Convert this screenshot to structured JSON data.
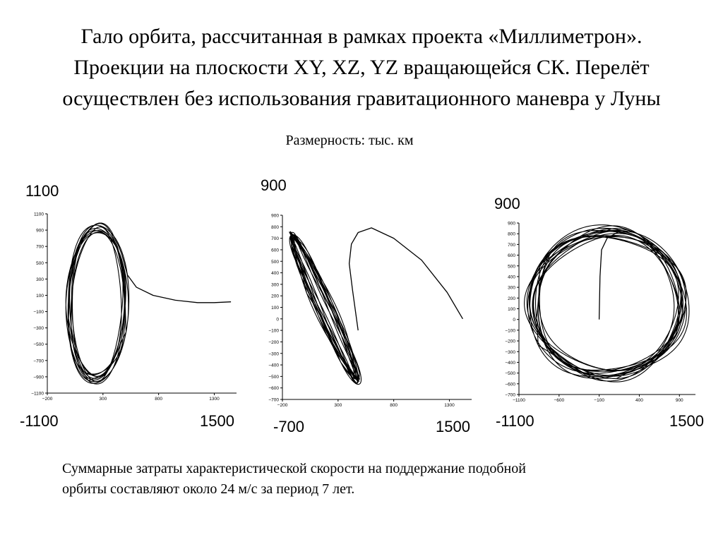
{
  "title_lines": [
    "Гало орбита, рассчитанная в рамках проекта «Миллиметрон».",
    "Проекции на плоскости XY, XZ, YZ вращающейся СК. Перелёт",
    "осуществлен без использования гравитационного маневра у Луны"
  ],
  "subtitle": "Размерность: тыс. км",
  "footer_lines": [
    "Суммарные затраты характеристической скорости на поддержание подобной",
    "орбиты составляют около 24 м/с за период 7 лет."
  ],
  "panels": [
    {
      "big_top": "1100",
      "big_bottom_left": "-1100",
      "big_bottom_right": "1500",
      "xticks": [
        "−200",
        "300",
        "800",
        "1300"
      ],
      "yticks": [
        "1100",
        "900",
        "700",
        "500",
        "300",
        "100",
        "−100",
        "−300",
        "−500",
        "−700",
        "−900",
        "−1100"
      ]
    },
    {
      "big_top": "900",
      "big_bottom_left": "-700",
      "big_bottom_right": "1500",
      "xticks": [
        "−200",
        "300",
        "800",
        "1300"
      ],
      "yticks": [
        "900",
        "800",
        "700",
        "600",
        "500",
        "400",
        "300",
        "200",
        "100",
        "0",
        "−100",
        "−200",
        "−300",
        "−400",
        "−500",
        "−600",
        "−700"
      ]
    },
    {
      "big_top": "900",
      "big_bottom_left": "-1100",
      "big_bottom_right": "1500",
      "xticks": [
        "−1100",
        "−600",
        "−100",
        "400",
        "900"
      ],
      "yticks": [
        "900",
        "800",
        "700",
        "600",
        "500",
        "400",
        "300",
        "200",
        "100",
        "0",
        "−100",
        "−200",
        "−300",
        "−400",
        "−500",
        "−600",
        "−700"
      ]
    }
  ],
  "chart_data": [
    {
      "type": "line",
      "xlim": [
        -200,
        1500
      ],
      "ylim": [
        -1100,
        1100
      ],
      "series": [
        {
          "values": [
            [
              420,
              780
            ],
            [
              470,
              600
            ],
            [
              520,
              350
            ],
            [
              600,
              200
            ],
            [
              750,
              100
            ],
            [
              950,
              40
            ],
            [
              1150,
              10
            ],
            [
              1300,
              10
            ],
            [
              1450,
              20
            ]
          ]
        },
        {
          "values": [
            [
              520,
              0
            ],
            [
              480,
              600
            ],
            [
              300,
              1000
            ],
            [
              100,
              700
            ],
            [
              -30,
              0
            ],
            [
              60,
              -800
            ],
            [
              300,
              -1000
            ],
            [
              480,
              -600
            ],
            [
              520,
              0
            ]
          ]
        }
      ]
    },
    {
      "type": "line",
      "xlim": [
        -200,
        1500
      ],
      "ylim": [
        -700,
        900
      ],
      "series": [
        {
          "values": [
            [
              1420,
              0
            ],
            [
              1280,
              230
            ],
            [
              1050,
              510
            ],
            [
              800,
              700
            ],
            [
              600,
              790
            ],
            [
              480,
              750
            ],
            [
              420,
              650
            ],
            [
              400,
              480
            ],
            [
              430,
              250
            ],
            [
              480,
              -100
            ]
          ]
        },
        {
          "values": [
            [
              -180,
              720
            ],
            [
              -100,
              800
            ],
            [
              100,
              500
            ],
            [
              350,
              0
            ],
            [
              500,
              -450
            ],
            [
              540,
              -610
            ],
            [
              480,
              -600
            ],
            [
              300,
              -300
            ],
            [
              60,
              200
            ],
            [
              -130,
              640
            ]
          ]
        }
      ]
    },
    {
      "type": "line",
      "xlim": [
        -1100,
        1100
      ],
      "ylim": [
        -700,
        900
      ],
      "series": [
        {
          "values": [
            [
              -100,
              0
            ],
            [
              -90,
              400
            ],
            [
              -70,
              650
            ],
            [
              0,
              760
            ],
            [
              150,
              820
            ]
          ]
        },
        {
          "values": [
            [
              1000,
              200
            ],
            [
              800,
              700
            ],
            [
              0,
              850
            ],
            [
              -800,
              700
            ],
            [
              -1000,
              200
            ],
            [
              -850,
              -400
            ],
            [
              -100,
              -550
            ],
            [
              700,
              -400
            ],
            [
              1000,
              200
            ]
          ]
        }
      ]
    }
  ]
}
